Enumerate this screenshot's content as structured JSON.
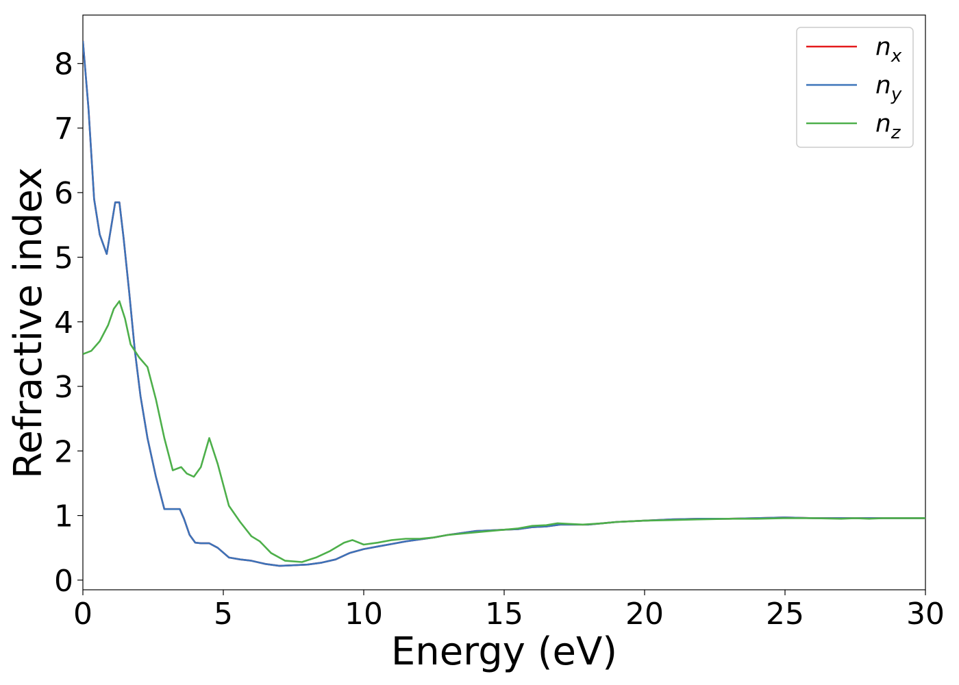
{
  "chart_data": {
    "type": "line",
    "xlabel": "Energy (eV)",
    "ylabel": "Refractive index",
    "xlim": [
      0,
      30
    ],
    "ylim": [
      -0.15,
      8.75
    ],
    "xticks": [
      0,
      5,
      10,
      15,
      20,
      25,
      30
    ],
    "yticks": [
      0,
      1,
      2,
      3,
      4,
      5,
      6,
      7,
      8
    ],
    "grid": false,
    "legend_position": "top-right",
    "series": [
      {
        "name": "n",
        "subscript": "x",
        "color": "#e41a1c",
        "x": [
          0,
          0.2,
          0.4,
          0.6,
          0.85,
          1.0,
          1.15,
          1.3,
          1.45,
          1.65,
          1.85,
          2.05,
          2.3,
          2.6,
          2.9,
          3.2,
          3.45,
          3.6,
          3.8,
          4.0,
          4.2,
          4.5,
          4.8,
          5.2,
          5.6,
          6.0,
          6.5,
          7.0,
          7.5,
          8.0,
          8.5,
          9.0,
          9.5,
          10.0,
          10.5,
          11.0,
          11.5,
          12.0,
          12.5,
          13.0,
          13.5,
          14.0,
          14.5,
          15.0,
          15.5,
          16.0,
          16.5,
          17.0,
          17.5,
          18.0,
          18.5,
          19.0,
          20.0,
          21.0,
          22.0,
          23.0,
          24.0,
          25.0,
          26.0,
          27.0,
          28.0,
          29.0,
          30.0
        ],
        "y": [
          8.35,
          7.3,
          5.9,
          5.35,
          5.05,
          5.45,
          5.85,
          5.85,
          5.3,
          4.45,
          3.55,
          2.85,
          2.2,
          1.6,
          1.1,
          1.1,
          1.1,
          0.95,
          0.7,
          0.58,
          0.57,
          0.57,
          0.5,
          0.35,
          0.32,
          0.3,
          0.25,
          0.22,
          0.23,
          0.24,
          0.27,
          0.32,
          0.42,
          0.48,
          0.52,
          0.56,
          0.6,
          0.63,
          0.66,
          0.7,
          0.73,
          0.76,
          0.77,
          0.78,
          0.79,
          0.82,
          0.83,
          0.86,
          0.86,
          0.86,
          0.88,
          0.9,
          0.92,
          0.94,
          0.95,
          0.95,
          0.96,
          0.97,
          0.96,
          0.96,
          0.96,
          0.96,
          0.96
        ]
      },
      {
        "name": "n",
        "subscript": "y",
        "color": "#3b73b9",
        "x": [
          0,
          0.2,
          0.4,
          0.6,
          0.85,
          1.0,
          1.15,
          1.3,
          1.45,
          1.65,
          1.85,
          2.05,
          2.3,
          2.6,
          2.9,
          3.2,
          3.45,
          3.6,
          3.8,
          4.0,
          4.2,
          4.5,
          4.8,
          5.2,
          5.6,
          6.0,
          6.5,
          7.0,
          7.5,
          8.0,
          8.5,
          9.0,
          9.5,
          10.0,
          10.5,
          11.0,
          11.5,
          12.0,
          12.5,
          13.0,
          13.5,
          14.0,
          14.5,
          15.0,
          15.5,
          16.0,
          16.5,
          17.0,
          17.5,
          18.0,
          18.5,
          19.0,
          20.0,
          21.0,
          22.0,
          23.0,
          24.0,
          25.0,
          26.0,
          27.0,
          28.0,
          29.0,
          30.0
        ],
        "y": [
          8.35,
          7.3,
          5.9,
          5.35,
          5.05,
          5.45,
          5.85,
          5.85,
          5.3,
          4.45,
          3.55,
          2.85,
          2.2,
          1.6,
          1.1,
          1.1,
          1.1,
          0.95,
          0.7,
          0.58,
          0.57,
          0.57,
          0.5,
          0.35,
          0.32,
          0.3,
          0.25,
          0.22,
          0.23,
          0.24,
          0.27,
          0.32,
          0.42,
          0.48,
          0.52,
          0.56,
          0.6,
          0.63,
          0.66,
          0.7,
          0.73,
          0.76,
          0.77,
          0.78,
          0.79,
          0.82,
          0.83,
          0.86,
          0.86,
          0.86,
          0.88,
          0.9,
          0.92,
          0.94,
          0.95,
          0.95,
          0.96,
          0.97,
          0.96,
          0.96,
          0.96,
          0.96,
          0.96
        ]
      },
      {
        "name": "n",
        "subscript": "z",
        "color": "#4daf4a",
        "x": [
          0,
          0.3,
          0.6,
          0.9,
          1.1,
          1.3,
          1.5,
          1.7,
          2.0,
          2.3,
          2.6,
          2.9,
          3.2,
          3.5,
          3.7,
          3.95,
          4.2,
          4.5,
          4.8,
          5.2,
          5.6,
          6.0,
          6.3,
          6.7,
          7.2,
          7.8,
          8.3,
          8.8,
          9.3,
          9.6,
          10.0,
          10.5,
          11.0,
          11.5,
          12.0,
          12.5,
          13.0,
          13.5,
          14.0,
          14.5,
          15.0,
          15.5,
          16.0,
          16.5,
          16.9,
          17.3,
          17.8,
          18.5,
          19.0,
          20.0,
          21.0,
          22.0,
          23.0,
          24.0,
          25.0,
          26.0,
          27.0,
          27.5,
          28.0,
          28.5,
          29.0,
          30.0
        ],
        "y": [
          3.5,
          3.55,
          3.7,
          3.95,
          4.2,
          4.32,
          4.05,
          3.65,
          3.45,
          3.3,
          2.8,
          2.2,
          1.7,
          1.75,
          1.65,
          1.6,
          1.75,
          2.2,
          1.8,
          1.15,
          0.9,
          0.68,
          0.6,
          0.42,
          0.3,
          0.28,
          0.35,
          0.45,
          0.58,
          0.62,
          0.55,
          0.58,
          0.62,
          0.64,
          0.64,
          0.66,
          0.7,
          0.72,
          0.74,
          0.76,
          0.78,
          0.8,
          0.84,
          0.85,
          0.88,
          0.87,
          0.86,
          0.88,
          0.9,
          0.92,
          0.93,
          0.94,
          0.95,
          0.95,
          0.96,
          0.96,
          0.95,
          0.96,
          0.95,
          0.96,
          0.96,
          0.96
        ]
      }
    ]
  }
}
